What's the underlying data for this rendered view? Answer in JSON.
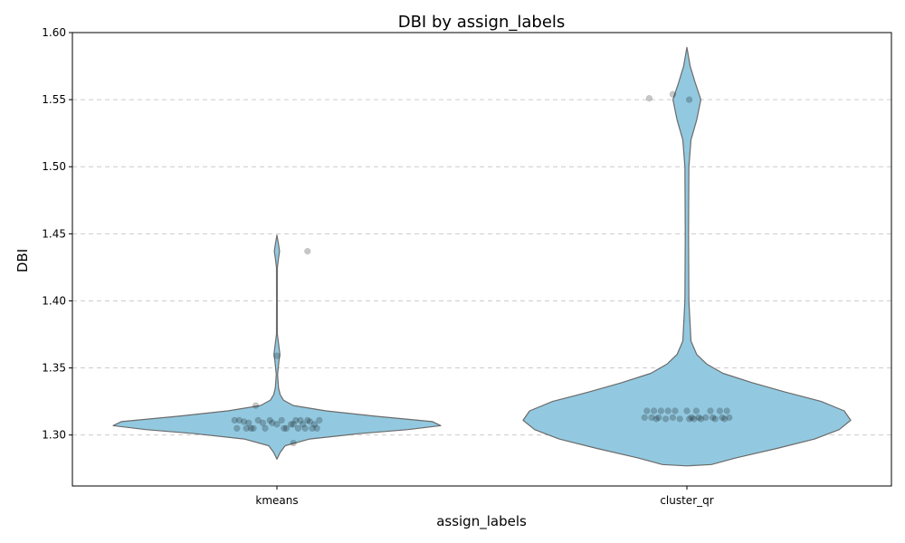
{
  "chart_data": {
    "type": "violin",
    "title": "DBI by assign_labels",
    "xlabel": "assign_labels",
    "ylabel": "DBI",
    "categories": [
      "kmeans",
      "cluster_qr"
    ],
    "ylim": [
      1.262,
      1.6
    ],
    "yticks": [
      1.3,
      1.35,
      1.4,
      1.45,
      1.5,
      1.55,
      1.6
    ],
    "ytick_labels": [
      "1.30",
      "1.35",
      "1.40",
      "1.45",
      "1.50",
      "1.55",
      "1.60"
    ],
    "grid": "horizontal dashed",
    "colors": {
      "violin_fill": "#92c9e0",
      "violin_edge": "#6b6b6b",
      "point": "#000000",
      "grid": "#cccccc"
    },
    "violins": [
      {
        "category": "kmeans",
        "range": [
          1.282,
          1.449
        ],
        "profile": [
          [
            1.282,
            0.0
          ],
          [
            1.287,
            0.02
          ],
          [
            1.292,
            0.05
          ],
          [
            1.297,
            0.2
          ],
          [
            1.301,
            0.5
          ],
          [
            1.304,
            0.8
          ],
          [
            1.307,
            1.0
          ],
          [
            1.31,
            0.95
          ],
          [
            1.314,
            0.6
          ],
          [
            1.318,
            0.3
          ],
          [
            1.322,
            0.1
          ],
          [
            1.326,
            0.04
          ],
          [
            1.33,
            0.02
          ],
          [
            1.335,
            0.01
          ],
          [
            1.345,
            0.004
          ],
          [
            1.355,
            0.012
          ],
          [
            1.36,
            0.018
          ],
          [
            1.366,
            0.012
          ],
          [
            1.375,
            0.003
          ],
          [
            1.4,
            0.002
          ],
          [
            1.425,
            0.003
          ],
          [
            1.432,
            0.01
          ],
          [
            1.437,
            0.016
          ],
          [
            1.442,
            0.01
          ],
          [
            1.449,
            0.0
          ]
        ]
      },
      {
        "category": "cluster_qr",
        "range": [
          1.277,
          1.589
        ],
        "profile": [
          [
            1.277,
            0.0
          ],
          [
            1.278,
            0.15
          ],
          [
            1.283,
            0.3
          ],
          [
            1.29,
            0.55
          ],
          [
            1.297,
            0.78
          ],
          [
            1.304,
            0.93
          ],
          [
            1.311,
            1.0
          ],
          [
            1.318,
            0.96
          ],
          [
            1.325,
            0.82
          ],
          [
            1.332,
            0.6
          ],
          [
            1.339,
            0.4
          ],
          [
            1.346,
            0.22
          ],
          [
            1.353,
            0.12
          ],
          [
            1.36,
            0.06
          ],
          [
            1.37,
            0.025
          ],
          [
            1.4,
            0.012
          ],
          [
            1.45,
            0.01
          ],
          [
            1.5,
            0.012
          ],
          [
            1.52,
            0.025
          ],
          [
            1.535,
            0.06
          ],
          [
            1.55,
            0.085
          ],
          [
            1.563,
            0.05
          ],
          [
            1.575,
            0.02
          ],
          [
            1.589,
            0.0
          ]
        ]
      }
    ],
    "points": [
      {
        "category": "kmeans",
        "values": [
          1.311,
          1.311,
          1.31,
          1.309,
          1.311,
          1.305,
          1.305,
          1.305,
          1.305,
          1.309,
          1.308,
          1.311,
          1.305,
          1.308,
          1.311,
          1.311,
          1.305,
          1.31,
          1.305,
          1.308,
          1.305,
          1.311,
          1.309,
          1.305,
          1.311,
          1.308,
          1.305,
          1.311,
          1.308,
          1.305,
          1.294,
          1.322,
          1.359,
          1.437
        ],
        "offsets": [
          -0.18,
          -0.16,
          -0.14,
          -0.12,
          -0.08,
          -0.17,
          -0.13,
          -0.1,
          -0.05,
          -0.02,
          0.0,
          0.02,
          0.04,
          0.06,
          0.08,
          0.1,
          0.12,
          0.14,
          0.15,
          0.16,
          0.17,
          0.18,
          -0.06,
          0.03,
          -0.03,
          0.07,
          0.09,
          0.13,
          0.11,
          -0.11,
          0.07,
          -0.09,
          0.0,
          0.13
        ]
      },
      {
        "category": "cluster_qr",
        "values": [
          1.318,
          1.318,
          1.318,
          1.318,
          1.318,
          1.318,
          1.318,
          1.318,
          1.318,
          1.318,
          1.313,
          1.313,
          1.313,
          1.313,
          1.313,
          1.313,
          1.313,
          1.313,
          1.313,
          1.313,
          1.312,
          1.312,
          1.312,
          1.312,
          1.312,
          1.312,
          1.312,
          1.312,
          1.551,
          1.554,
          1.55
        ],
        "offsets": [
          -0.17,
          -0.14,
          -0.11,
          -0.08,
          -0.05,
          0.0,
          0.04,
          0.1,
          0.14,
          0.17,
          -0.18,
          -0.15,
          -0.12,
          -0.06,
          0.02,
          0.05,
          0.08,
          0.11,
          0.15,
          0.18,
          -0.13,
          -0.09,
          -0.03,
          0.01,
          0.03,
          0.06,
          0.12,
          0.16,
          -0.16,
          -0.06,
          0.01
        ]
      }
    ]
  }
}
